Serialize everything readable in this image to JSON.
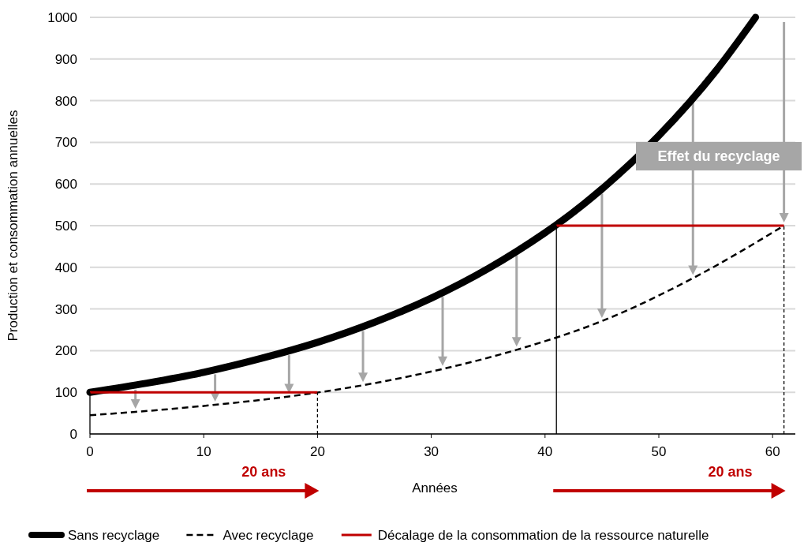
{
  "chart_data": {
    "type": "line",
    "xlabel": "Années",
    "ylabel": "Production et consommation annuelles",
    "xlim": [
      0,
      62
    ],
    "ylim": [
      0,
      1000
    ],
    "xticks": [
      0,
      10,
      20,
      30,
      40,
      50,
      60
    ],
    "yticks": [
      0,
      100,
      200,
      300,
      400,
      500,
      600,
      700,
      800,
      900,
      1000
    ],
    "grid": "y",
    "legend": "bottom",
    "annotations": [
      "20 ans",
      "20 ans",
      "Effet du recyclage"
    ],
    "series": [
      {
        "name": "Sans recyclage",
        "color": "#000000",
        "line_style": "solid",
        "x": [
          0,
          5,
          10,
          15,
          20,
          25,
          30,
          35,
          40,
          41,
          45,
          50,
          55,
          58.5
        ],
        "values": [
          100,
          122,
          148,
          181,
          220,
          268,
          326,
          397,
          483,
          502,
          588,
          716,
          871,
          1000
        ]
      },
      {
        "name": "Avec recyclage",
        "color": "#000000",
        "line_style": "dashed",
        "x": [
          0,
          4,
          11,
          17.5,
          24,
          31,
          37.5,
          45,
          53,
          61
        ],
        "values": [
          45,
          53,
          70,
          90,
          117,
          156,
          202,
          271,
          374,
          500
        ]
      },
      {
        "name": "Décalage de la consommation de la ressource naturelle",
        "color": "#c00000",
        "line_style": "solid",
        "x": [
          0,
          20,
          30,
          41,
          61
        ],
        "values": [
          100,
          100,
          null,
          500,
          500
        ]
      },
      {
        "color": "#000000",
        "line_style": "solid",
        "x": [
          0,
          0
        ],
        "values": [
          0,
          100
        ]
      },
      {
        "color": "#000000",
        "line_style": "solid",
        "x": [
          41,
          41
        ],
        "values": [
          0,
          500
        ]
      },
      {
        "color": "#000000",
        "line_style": "dashed",
        "x": [
          20,
          20
        ],
        "values": [
          0,
          100
        ]
      },
      {
        "color": "#000000",
        "line_style": "dashed",
        "x": [
          61,
          61
        ],
        "values": [
          0,
          500
        ]
      }
    ]
  }
}
